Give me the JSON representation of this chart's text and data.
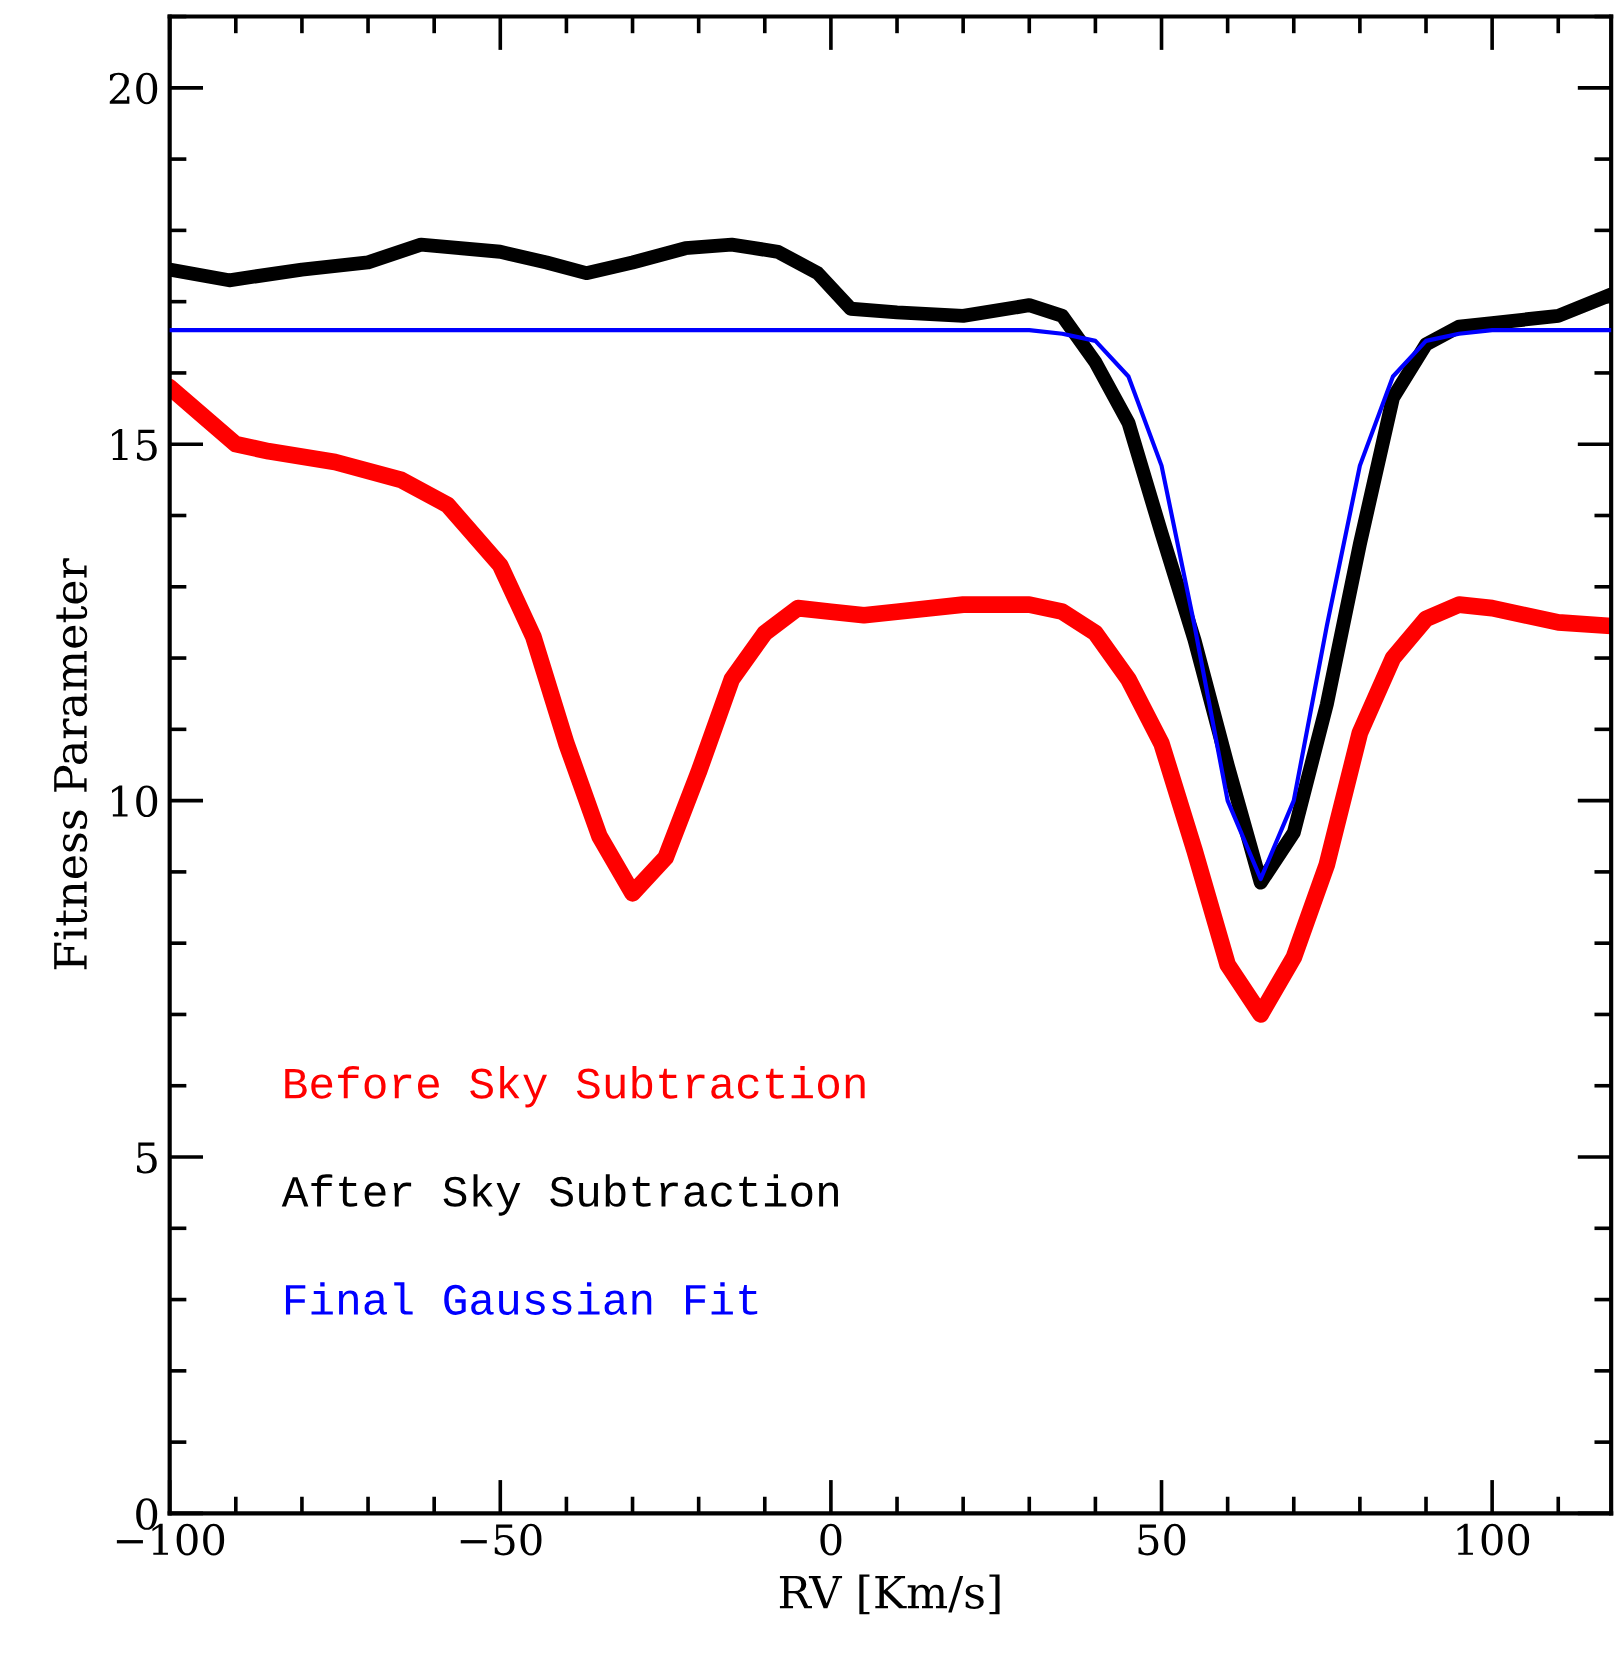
{
  "chart_data": {
    "type": "line",
    "xlabel": "RV [Km/s]",
    "ylabel": "Fitness Parameter",
    "xlim": [
      -100,
      118
    ],
    "ylim": [
      0,
      21
    ],
    "xticks": [
      -100,
      -50,
      0,
      50,
      100
    ],
    "yticks": [
      0,
      5,
      10,
      15,
      20
    ],
    "grid": false,
    "legend": "bottom left",
    "line_style": "solid",
    "series": [
      {
        "name": "Before Sky Subtraction",
        "color": "#ff0000",
        "x": [
          -100,
          -95,
          -90,
          -85,
          -75,
          -65,
          -58,
          -50,
          -45,
          -40,
          -35,
          -30,
          -25,
          -20,
          -15,
          -10,
          -5,
          0,
          5,
          10,
          20,
          30,
          35,
          40,
          45,
          50,
          55,
          60,
          65,
          70,
          75,
          80,
          85,
          90,
          95,
          100,
          110,
          118
        ],
        "values": [
          15.8,
          15.4,
          15.0,
          14.9,
          14.75,
          14.5,
          14.15,
          13.3,
          12.3,
          10.8,
          9.5,
          8.7,
          9.2,
          10.4,
          11.7,
          12.35,
          12.7,
          12.65,
          12.6,
          12.65,
          12.75,
          12.75,
          12.65,
          12.35,
          11.7,
          10.8,
          9.3,
          7.7,
          7.0,
          7.8,
          9.1,
          10.95,
          12.0,
          12.55,
          12.75,
          12.7,
          12.5,
          12.45
        ]
      },
      {
        "name": "After Sky Subtraction",
        "color": "#000000",
        "x": [
          -100,
          -91,
          -80,
          -70,
          -62,
          -50,
          -43,
          -37,
          -30,
          -22,
          -15,
          -8,
          -2,
          3,
          10,
          20,
          30,
          35,
          40,
          45,
          50,
          55,
          60,
          65,
          70,
          75,
          80,
          85,
          90,
          95,
          100,
          110,
          118
        ],
        "values": [
          17.45,
          17.3,
          17.45,
          17.55,
          17.8,
          17.7,
          17.55,
          17.4,
          17.55,
          17.75,
          17.8,
          17.7,
          17.4,
          16.9,
          16.85,
          16.8,
          16.95,
          16.8,
          16.15,
          15.3,
          13.75,
          12.25,
          10.5,
          8.85,
          9.55,
          11.35,
          13.6,
          15.65,
          16.4,
          16.65,
          16.7,
          16.8,
          17.1
        ]
      },
      {
        "name": "Final Gaussian Fit",
        "color": "#0000ff",
        "x": [
          -100,
          0,
          30,
          35,
          40,
          45,
          50,
          55,
          60,
          65,
          70,
          75,
          80,
          85,
          90,
          95,
          100,
          118
        ],
        "values": [
          16.6,
          16.6,
          16.6,
          16.55,
          16.45,
          15.95,
          14.7,
          12.45,
          10.0,
          8.9,
          10.0,
          12.45,
          14.7,
          15.95,
          16.45,
          16.55,
          16.6,
          16.6
        ]
      }
    ]
  }
}
